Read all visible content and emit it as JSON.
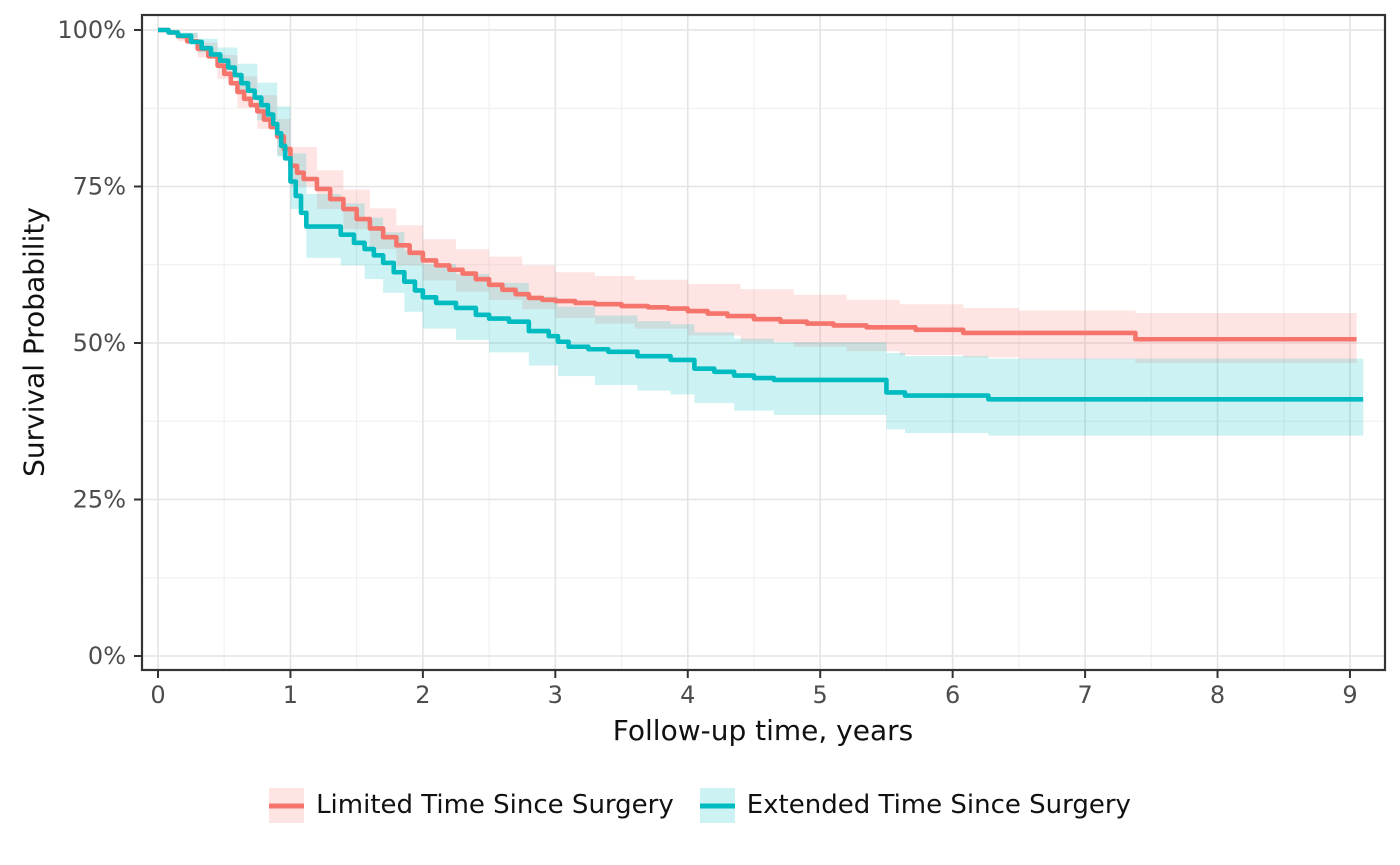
{
  "chart_data": {
    "type": "line",
    "subtype": "kaplan-meier-step-with-ci",
    "title": "",
    "xlabel": "Follow-up time, years",
    "ylabel": "Survival Probability",
    "x_ticks": [
      0,
      1,
      2,
      3,
      4,
      5,
      6,
      7,
      8,
      9
    ],
    "y_ticks": [
      {
        "value": 0,
        "label": "0%"
      },
      {
        "value": 25,
        "label": "25%"
      },
      {
        "value": 50,
        "label": "50%"
      },
      {
        "value": 75,
        "label": "75%"
      },
      {
        "value": 100,
        "label": "100%"
      }
    ],
    "xlim": [
      -0.12,
      9.27
    ],
    "ylim": [
      0,
      100
    ],
    "grid": {
      "major": true,
      "minor": true
    },
    "legend_position": "bottom",
    "colors": {
      "limited_line": "#F5756C",
      "limited_band": "rgba(248,118,109,0.19)",
      "extended_line": "#00BCC1",
      "extended_band": "rgba(0,188,193,0.20)",
      "grid_major": "#E4E4E4",
      "grid_minor": "#F1F1F1",
      "panel_border": "#333333",
      "tick_label": "#4D4D4D"
    },
    "series": [
      {
        "name": "Limited Time Since Surgery",
        "color": "#F5756C",
        "ci_fill": "rgba(248,118,109,0.19)",
        "points": [
          [
            0,
            100
          ],
          [
            0.08,
            99.6
          ],
          [
            0.15,
            99
          ],
          [
            0.22,
            98.2
          ],
          [
            0.3,
            97
          ],
          [
            0.38,
            95.8
          ],
          [
            0.45,
            94.3
          ],
          [
            0.5,
            93
          ],
          [
            0.55,
            91.5
          ],
          [
            0.6,
            90.1
          ],
          [
            0.65,
            89
          ],
          [
            0.7,
            88
          ],
          [
            0.75,
            87
          ],
          [
            0.8,
            85.7
          ],
          [
            0.85,
            84.5
          ],
          [
            0.9,
            83
          ],
          [
            0.95,
            81
          ],
          [
            1.0,
            78.3
          ],
          [
            1.05,
            77.2
          ],
          [
            1.1,
            76.2
          ],
          [
            1.2,
            74.6
          ],
          [
            1.3,
            73
          ],
          [
            1.4,
            71.4
          ],
          [
            1.5,
            69.8
          ],
          [
            1.6,
            68.3
          ],
          [
            1.7,
            66.9
          ],
          [
            1.8,
            65.6
          ],
          [
            1.9,
            64.4
          ],
          [
            2.0,
            63.2
          ],
          [
            2.1,
            62.4
          ],
          [
            2.2,
            61.7
          ],
          [
            2.3,
            61.1
          ],
          [
            2.4,
            60.2
          ],
          [
            2.5,
            59.3
          ],
          [
            2.6,
            58.5
          ],
          [
            2.7,
            57.8
          ],
          [
            2.8,
            57.2
          ],
          [
            2.9,
            56.9
          ],
          [
            3.0,
            56.7
          ],
          [
            3.15,
            56.4
          ],
          [
            3.3,
            56.2
          ],
          [
            3.5,
            55.9
          ],
          [
            3.7,
            55.7
          ],
          [
            3.85,
            55.5
          ],
          [
            4.0,
            55.1
          ],
          [
            4.15,
            54.7
          ],
          [
            4.3,
            54.3
          ],
          [
            4.5,
            53.8
          ],
          [
            4.7,
            53.4
          ],
          [
            4.9,
            53.1
          ],
          [
            5.1,
            52.8
          ],
          [
            5.35,
            52.5
          ],
          [
            5.72,
            52.1
          ],
          [
            6.08,
            51.6
          ],
          [
            7.38,
            50.6
          ],
          [
            9.05,
            50.6
          ]
        ],
        "ci_upper": [
          [
            0,
            100
          ],
          [
            0.15,
            99.5
          ],
          [
            0.3,
            98
          ],
          [
            0.45,
            96
          ],
          [
            0.6,
            92.6
          ],
          [
            0.75,
            89.6
          ],
          [
            0.9,
            85.8
          ],
          [
            1.0,
            81.3
          ],
          [
            1.2,
            77.6
          ],
          [
            1.4,
            74.5
          ],
          [
            1.6,
            71.5
          ],
          [
            1.8,
            68.8
          ],
          [
            2.0,
            66.6
          ],
          [
            2.25,
            65
          ],
          [
            2.5,
            63.8
          ],
          [
            2.75,
            62.4
          ],
          [
            3.0,
            61.3
          ],
          [
            3.3,
            60.7
          ],
          [
            3.6,
            60.1
          ],
          [
            4.0,
            59.4
          ],
          [
            4.4,
            58.6
          ],
          [
            4.8,
            57.7
          ],
          [
            5.2,
            56.9
          ],
          [
            5.6,
            56.2
          ],
          [
            6.08,
            55.6
          ],
          [
            6.5,
            55.2
          ],
          [
            7.38,
            54.8
          ],
          [
            9.05,
            54.8
          ]
        ],
        "ci_lower": [
          [
            0,
            100
          ],
          [
            0.15,
            98.2
          ],
          [
            0.3,
            95.6
          ],
          [
            0.45,
            92.2
          ],
          [
            0.6,
            87.6
          ],
          [
            0.75,
            84.2
          ],
          [
            0.9,
            80
          ],
          [
            1.0,
            75.1
          ],
          [
            1.2,
            71.4
          ],
          [
            1.4,
            68.2
          ],
          [
            1.6,
            65
          ],
          [
            1.8,
            62.4
          ],
          [
            2.0,
            60
          ],
          [
            2.25,
            58.2
          ],
          [
            2.5,
            56.9
          ],
          [
            2.75,
            55.4
          ],
          [
            3.0,
            54
          ],
          [
            3.3,
            53.1
          ],
          [
            3.6,
            52.3
          ],
          [
            4.0,
            51.2
          ],
          [
            4.4,
            50.2
          ],
          [
            4.8,
            49.4
          ],
          [
            5.2,
            48.7
          ],
          [
            5.6,
            48.1
          ],
          [
            6.08,
            47.7
          ],
          [
            6.5,
            47.4
          ],
          [
            7.38,
            46.8
          ],
          [
            9.05,
            46.8
          ]
        ]
      },
      {
        "name": "Extended Time Since Surgery",
        "color": "#00BCC1",
        "ci_fill": "rgba(0,188,193,0.20)",
        "points": [
          [
            0,
            100
          ],
          [
            0.08,
            99.6
          ],
          [
            0.15,
            99.1
          ],
          [
            0.25,
            98.1
          ],
          [
            0.33,
            97.1
          ],
          [
            0.4,
            96.1
          ],
          [
            0.47,
            95.1
          ],
          [
            0.53,
            94
          ],
          [
            0.58,
            92.8
          ],
          [
            0.63,
            91.5
          ],
          [
            0.68,
            90.3
          ],
          [
            0.73,
            89.2
          ],
          [
            0.78,
            88
          ],
          [
            0.83,
            86.5
          ],
          [
            0.87,
            85
          ],
          [
            0.9,
            83.5
          ],
          [
            0.93,
            81.5
          ],
          [
            0.96,
            79.5
          ],
          [
            1.0,
            75.8
          ],
          [
            1.04,
            73.5
          ],
          [
            1.08,
            70.8
          ],
          [
            1.12,
            68.6
          ],
          [
            1.38,
            67.3
          ],
          [
            1.48,
            66
          ],
          [
            1.56,
            65
          ],
          [
            1.63,
            64
          ],
          [
            1.7,
            62.8
          ],
          [
            1.78,
            61.3
          ],
          [
            1.86,
            59.8
          ],
          [
            1.94,
            58.4
          ],
          [
            2.0,
            57.3
          ],
          [
            2.1,
            56.4
          ],
          [
            2.25,
            55.6
          ],
          [
            2.4,
            54.5
          ],
          [
            2.5,
            53.9
          ],
          [
            2.65,
            53.4
          ],
          [
            2.8,
            51.9
          ],
          [
            2.95,
            51.1
          ],
          [
            3.02,
            50.2
          ],
          [
            3.1,
            49.4
          ],
          [
            3.25,
            49
          ],
          [
            3.4,
            48.6
          ],
          [
            3.62,
            47.9
          ],
          [
            3.87,
            47.3
          ],
          [
            4.05,
            45.9
          ],
          [
            4.2,
            45.4
          ],
          [
            4.35,
            44.8
          ],
          [
            4.5,
            44.4
          ],
          [
            4.65,
            44.1
          ],
          [
            5.5,
            42.1
          ],
          [
            5.64,
            41.6
          ],
          [
            6.27,
            41
          ],
          [
            9.1,
            41
          ]
        ],
        "ci_upper": [
          [
            0,
            100
          ],
          [
            0.15,
            99.6
          ],
          [
            0.3,
            98.6
          ],
          [
            0.45,
            97.2
          ],
          [
            0.6,
            94.6
          ],
          [
            0.75,
            91.6
          ],
          [
            0.9,
            87.8
          ],
          [
            1.0,
            80.3
          ],
          [
            1.12,
            73.8
          ],
          [
            1.38,
            72.3
          ],
          [
            1.56,
            70
          ],
          [
            1.7,
            67.7
          ],
          [
            1.86,
            64.8
          ],
          [
            2.0,
            62.6
          ],
          [
            2.25,
            61
          ],
          [
            2.5,
            59.6
          ],
          [
            2.8,
            57.4
          ],
          [
            3.02,
            55.8
          ],
          [
            3.3,
            54.4
          ],
          [
            3.62,
            53.5
          ],
          [
            3.87,
            53
          ],
          [
            4.05,
            51.7
          ],
          [
            4.35,
            50.7
          ],
          [
            4.65,
            50.1
          ],
          [
            5.5,
            48.4
          ],
          [
            5.64,
            47.9
          ],
          [
            6.27,
            47.5
          ],
          [
            9.1,
            47.5
          ]
        ],
        "ci_lower": [
          [
            0,
            100
          ],
          [
            0.15,
            98.7
          ],
          [
            0.3,
            96.4
          ],
          [
            0.45,
            93.8
          ],
          [
            0.6,
            90
          ],
          [
            0.75,
            85.6
          ],
          [
            0.9,
            79.8
          ],
          [
            1.0,
            71.4
          ],
          [
            1.12,
            63.6
          ],
          [
            1.38,
            62.4
          ],
          [
            1.56,
            60.2
          ],
          [
            1.7,
            58
          ],
          [
            1.86,
            55
          ],
          [
            2.0,
            52.3
          ],
          [
            2.25,
            50.5
          ],
          [
            2.5,
            48.5
          ],
          [
            2.8,
            46.4
          ],
          [
            3.02,
            44.7
          ],
          [
            3.3,
            43.3
          ],
          [
            3.62,
            42.4
          ],
          [
            3.87,
            41.8
          ],
          [
            4.05,
            40.4
          ],
          [
            4.35,
            39.2
          ],
          [
            4.65,
            38.5
          ],
          [
            5.5,
            36.2
          ],
          [
            5.64,
            35.6
          ],
          [
            6.27,
            35.2
          ],
          [
            9.1,
            35.2
          ]
        ]
      }
    ]
  }
}
